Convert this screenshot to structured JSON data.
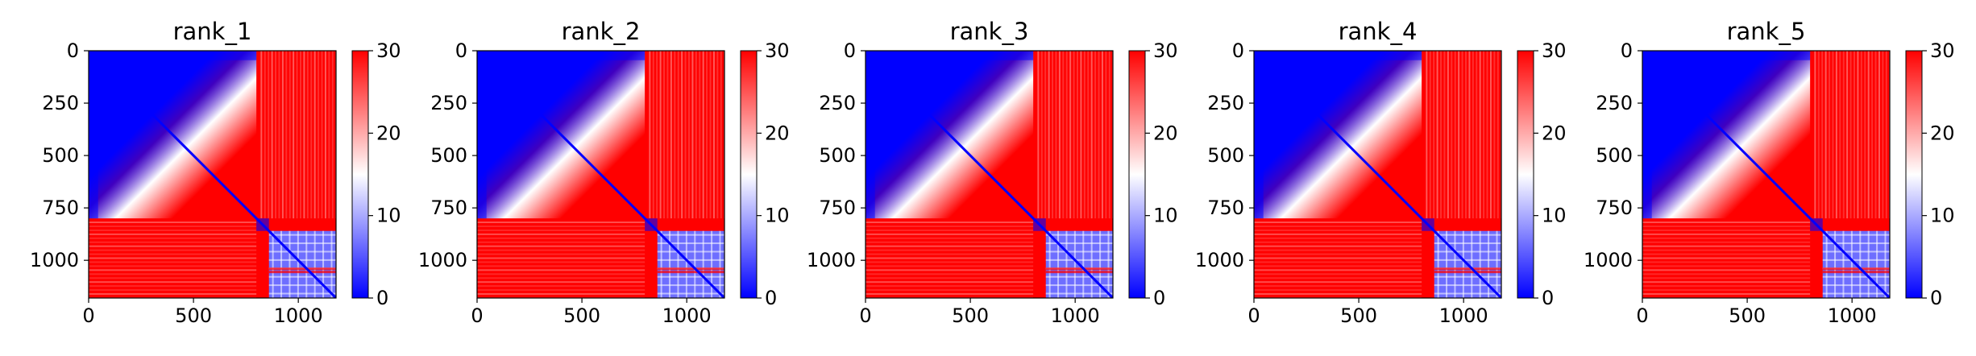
{
  "chart_data": [
    {
      "type": "heatmap",
      "title": "rank_1",
      "xlabel": "",
      "ylabel": "",
      "xlim": [
        0,
        1180
      ],
      "ylim": [
        1180,
        0
      ],
      "x_ticks": [
        "0",
        "500",
        "1000"
      ],
      "y_ticks": [
        "0",
        "250",
        "500",
        "750",
        "1000"
      ],
      "colorbar": {
        "min": 0,
        "max": 30,
        "ticks": [
          "0",
          "10",
          "20",
          "30"
        ],
        "colormap": "bwr"
      },
      "blocks": {
        "boundary": 800,
        "small_block_start": 860
      }
    },
    {
      "type": "heatmap",
      "title": "rank_2",
      "xlabel": "",
      "ylabel": "",
      "xlim": [
        0,
        1180
      ],
      "ylim": [
        1180,
        0
      ],
      "x_ticks": [
        "0",
        "500",
        "1000"
      ],
      "y_ticks": [
        "0",
        "250",
        "500",
        "750",
        "1000"
      ],
      "colorbar": {
        "min": 0,
        "max": 30,
        "ticks": [
          "0",
          "10",
          "20",
          "30"
        ],
        "colormap": "bwr"
      },
      "blocks": {
        "boundary": 800,
        "small_block_start": 860
      }
    },
    {
      "type": "heatmap",
      "title": "rank_3",
      "xlabel": "",
      "ylabel": "",
      "xlim": [
        0,
        1180
      ],
      "ylim": [
        1180,
        0
      ],
      "x_ticks": [
        "0",
        "500",
        "1000"
      ],
      "y_ticks": [
        "0",
        "250",
        "500",
        "750",
        "1000"
      ],
      "colorbar": {
        "min": 0,
        "max": 30,
        "ticks": [
          "0",
          "10",
          "20",
          "30"
        ],
        "colormap": "bwr"
      },
      "blocks": {
        "boundary": 800,
        "small_block_start": 860
      }
    },
    {
      "type": "heatmap",
      "title": "rank_4",
      "xlabel": "",
      "ylabel": "",
      "xlim": [
        0,
        1180
      ],
      "ylim": [
        1180,
        0
      ],
      "x_ticks": [
        "0",
        "500",
        "1000"
      ],
      "y_ticks": [
        "0",
        "250",
        "500",
        "750",
        "1000"
      ],
      "colorbar": {
        "min": 0,
        "max": 30,
        "ticks": [
          "0",
          "10",
          "20",
          "30"
        ],
        "colormap": "bwr"
      },
      "blocks": {
        "boundary": 800,
        "small_block_start": 860
      }
    },
    {
      "type": "heatmap",
      "title": "rank_5",
      "xlabel": "",
      "ylabel": "",
      "xlim": [
        0,
        1180
      ],
      "ylim": [
        1180,
        0
      ],
      "x_ticks": [
        "0",
        "500",
        "1000"
      ],
      "y_ticks": [
        "0",
        "250",
        "500",
        "750",
        "1000"
      ],
      "colorbar": {
        "min": 0,
        "max": 30,
        "ticks": [
          "0",
          "10",
          "20",
          "30"
        ],
        "colormap": "bwr"
      },
      "blocks": {
        "boundary": 800,
        "small_block_start": 860
      }
    }
  ],
  "colors": {
    "low": "#0000ff",
    "mid": "#ffffff",
    "high": "#ff0000",
    "axis": "#000000"
  }
}
